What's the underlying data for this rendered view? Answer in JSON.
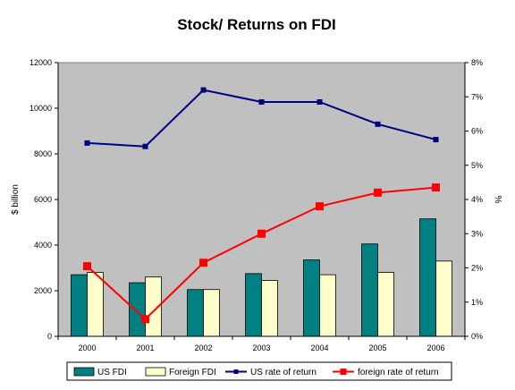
{
  "colors": {
    "plot_bg": "#c0c0c0",
    "us_fdi": "#008080",
    "foreign_fdi": "#ffffcc",
    "us_return": "#000080",
    "foreign_return": "#ff0000"
  },
  "chart_data": {
    "type": "bar",
    "title": "Stock/ Returns on FDI",
    "ylabel": "$ billion",
    "y2label": "%",
    "categories": [
      "2000",
      "2001",
      "2002",
      "2003",
      "2004",
      "2005",
      "2006"
    ],
    "ylim": [
      0,
      12000
    ],
    "yticks": [
      "0",
      "2000",
      "4000",
      "6000",
      "8000",
      "10000",
      "12000"
    ],
    "y2lim": [
      0,
      8
    ],
    "y2ticks": [
      "0%",
      "1%",
      "2%",
      "3%",
      "4%",
      "5%",
      "6%",
      "7%",
      "8%"
    ],
    "grid": false,
    "legend_position": "bottom",
    "series": [
      {
        "name": "US FDI",
        "kind": "bar",
        "axis": "left",
        "values": [
          2700,
          2350,
          2050,
          2750,
          3350,
          4050,
          5150
        ]
      },
      {
        "name": "Foreign FDI",
        "kind": "bar",
        "axis": "left",
        "values": [
          2800,
          2600,
          2050,
          2450,
          2700,
          2800,
          3300
        ]
      },
      {
        "name": "US rate of return",
        "kind": "line",
        "axis": "right",
        "values": [
          5.65,
          5.55,
          7.2,
          6.85,
          6.85,
          6.2,
          5.75
        ]
      },
      {
        "name": "foreign rate of return",
        "kind": "line",
        "axis": "right",
        "values": [
          2.05,
          0.5,
          2.15,
          3.0,
          3.8,
          4.2,
          4.35
        ]
      }
    ]
  }
}
